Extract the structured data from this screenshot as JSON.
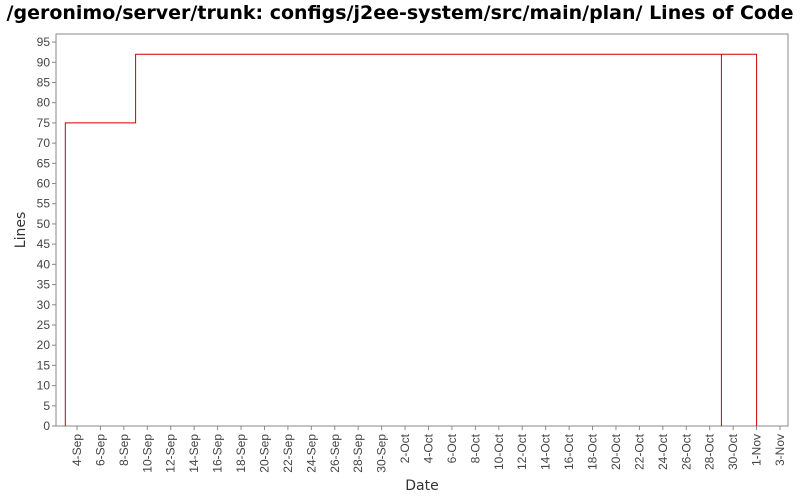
{
  "chart_data": {
    "type": "line",
    "title": "/geronimo/server/trunk: configs/j2ee-system/src/main/plan/ Lines of Code",
    "xlabel": "Date",
    "ylabel": "Lines",
    "ylim": [
      0,
      97
    ],
    "yticks": [
      0,
      5,
      10,
      15,
      20,
      25,
      30,
      35,
      40,
      45,
      50,
      55,
      60,
      65,
      70,
      75,
      80,
      85,
      90,
      95
    ],
    "x_tick_labels": [
      "4-Sep",
      "6-Sep",
      "8-Sep",
      "10-Sep",
      "12-Sep",
      "14-Sep",
      "16-Sep",
      "18-Sep",
      "20-Sep",
      "22-Sep",
      "24-Sep",
      "26-Sep",
      "28-Sep",
      "30-Sep",
      "2-Oct",
      "4-Oct",
      "6-Oct",
      "8-Oct",
      "10-Oct",
      "12-Oct",
      "14-Oct",
      "16-Oct",
      "18-Oct",
      "20-Oct",
      "22-Oct",
      "24-Oct",
      "26-Oct",
      "28-Oct",
      "30-Oct",
      "1-Nov",
      "3-Nov"
    ],
    "step": true,
    "grid": false,
    "legend": "none",
    "series": [
      {
        "color": "#cc0000",
        "points": [
          {
            "x": "3-Sep",
            "y": 0
          },
          {
            "x": "3-Sep",
            "y": 75
          },
          {
            "x": "9-Sep",
            "y": 75
          },
          {
            "x": "9-Sep",
            "y": 92
          },
          {
            "x": "29-Oct",
            "y": 92
          },
          {
            "x": "29-Oct",
            "y": 0
          },
          {
            "x": "29-Oct",
            "y": 92
          },
          {
            "x": "1-Nov",
            "y": 92
          },
          {
            "x": "1-Nov",
            "y": 0
          }
        ]
      }
    ]
  }
}
